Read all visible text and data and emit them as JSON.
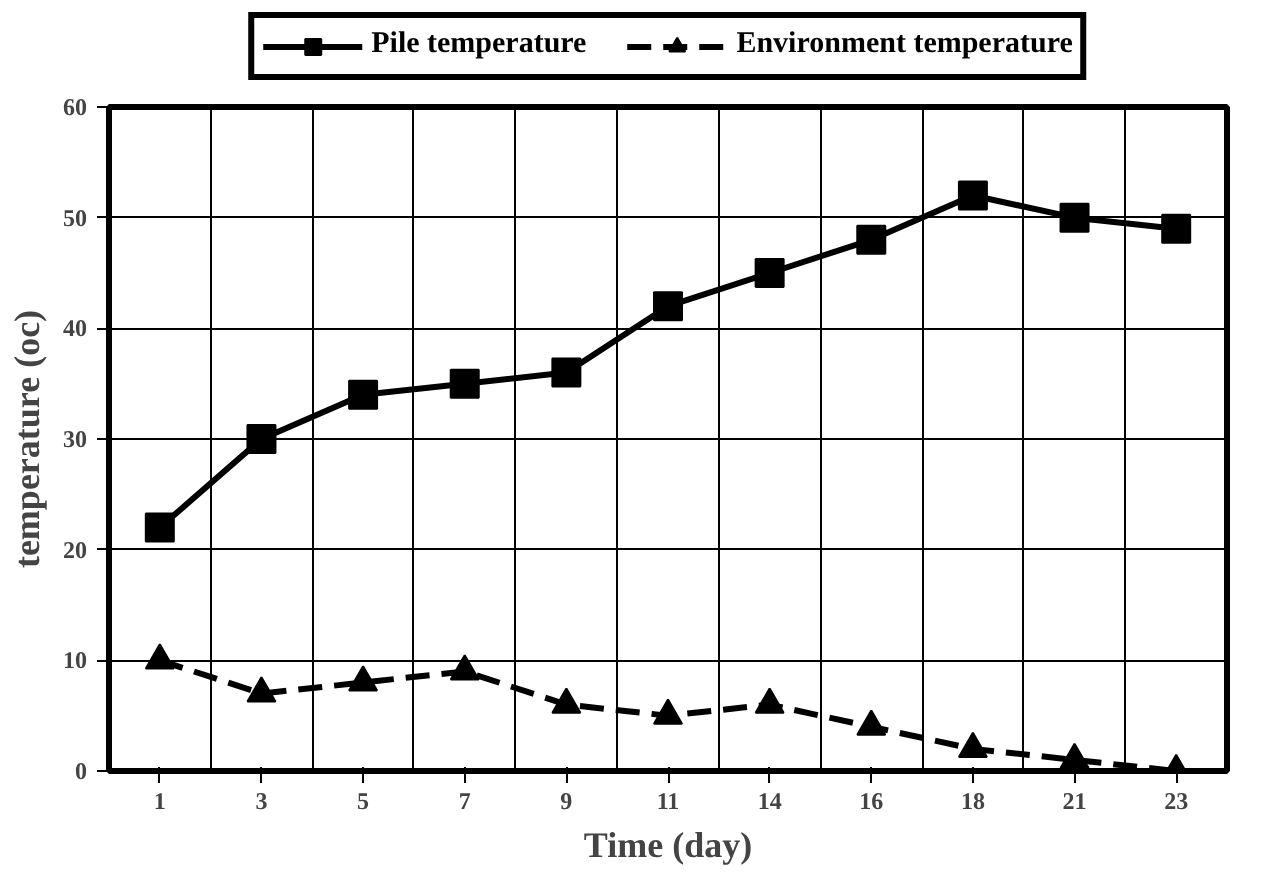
{
  "chart_data": {
    "type": "line",
    "xlabel": "Time (day)",
    "ylabel": "temperature (oc)",
    "categories": [
      "1",
      "3",
      "5",
      "7",
      "9",
      "11",
      "14",
      "16",
      "18",
      "21",
      "23"
    ],
    "series": [
      {
        "name": "Pile temperature",
        "color": "#000000",
        "marker": "square",
        "line_style": "solid",
        "values": [
          22,
          30,
          34,
          35,
          36,
          42,
          45,
          48,
          52,
          50,
          49
        ]
      },
      {
        "name": "Environment temperature",
        "color": "#000000",
        "marker": "triangle",
        "line_style": "dashed",
        "values": [
          10,
          7,
          8,
          9,
          6,
          5,
          6,
          4,
          2,
          1,
          0
        ]
      }
    ],
    "ylim": [
      0,
      60
    ],
    "yticks": [
      0,
      10,
      20,
      30,
      40,
      50,
      60
    ],
    "grid": true,
    "legend": "top"
  }
}
